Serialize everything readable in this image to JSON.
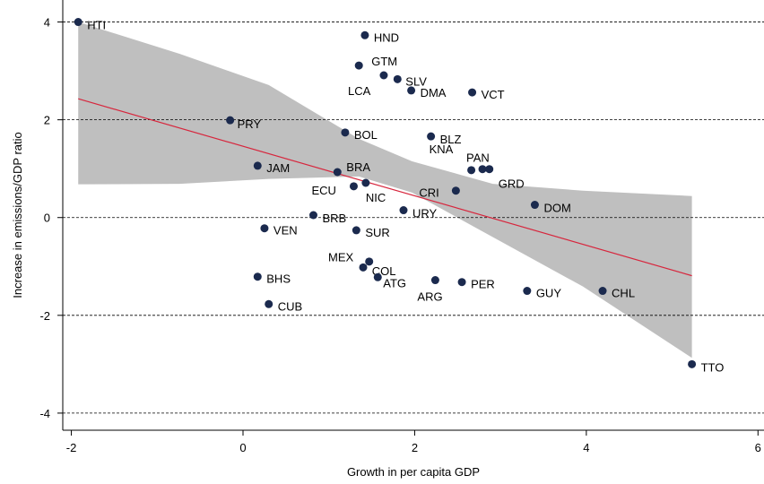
{
  "chart_data": {
    "type": "scatter",
    "xlabel": "Growth in per capita GDP",
    "ylabel": "Increase in emissions/GDP ratio",
    "point_labels": [
      "HTI",
      "HND",
      "GTM",
      "LCA",
      "SLV",
      "DMA",
      "VCT",
      "PRY",
      "BOL",
      "BLZ",
      "JAM",
      "BRA",
      "KNA",
      "PAN",
      "GRD",
      "ECU",
      "NIC",
      "CRI",
      "DOM",
      "BRB",
      "URY",
      "VEN",
      "SUR",
      "MEX",
      "COL",
      "ATG",
      "ARG",
      "PER",
      "BHS",
      "CUB",
      "GUY",
      "CHL",
      "TTO"
    ],
    "x": [
      -1.92,
      1.42,
      1.35,
      1.64,
      1.8,
      1.96,
      2.67,
      -0.15,
      1.19,
      2.19,
      0.17,
      1.1,
      2.66,
      2.79,
      2.87,
      1.29,
      1.43,
      2.48,
      3.4,
      0.82,
      1.87,
      0.25,
      1.32,
      1.4,
      1.47,
      1.57,
      2.24,
      2.55,
      0.17,
      0.3,
      3.31,
      4.19,
      5.23
    ],
    "values": [
      4.0,
      3.73,
      3.11,
      2.91,
      2.83,
      2.6,
      2.56,
      1.99,
      1.74,
      1.66,
      1.06,
      0.93,
      0.97,
      0.99,
      0.99,
      0.64,
      0.71,
      0.55,
      0.26,
      0.05,
      0.15,
      -0.22,
      -0.26,
      -1.02,
      -0.9,
      -1.22,
      -1.28,
      -1.32,
      -1.21,
      -1.77,
      -1.5,
      -1.5,
      -3.0
    ],
    "color": "#1b2a4e",
    "label_color": "#2c4a78",
    "fit_line": {
      "x": [
        -1.92,
        5.23
      ],
      "values": [
        2.43,
        -1.19
      ],
      "color": "#d7263d"
    },
    "confidence_band": {
      "x": [
        -1.92,
        -0.74,
        0.3,
        1.35,
        1.97,
        2.91,
        3.96,
        5.23
      ],
      "upper": [
        4.0,
        3.35,
        2.71,
        1.61,
        1.15,
        0.69,
        0.55,
        0.44
      ],
      "lower": [
        0.68,
        0.69,
        0.79,
        0.84,
        0.51,
        -0.4,
        -1.41,
        -2.87
      ],
      "color": "#bfbfbf"
    },
    "xlim": [
      -2.1,
      6.07
    ],
    "ylim": [
      -4.35,
      4.45
    ],
    "xticks": [
      -2,
      0,
      2,
      4,
      6
    ],
    "yticks": [
      -4,
      -2,
      0,
      2,
      4
    ],
    "grid": true
  }
}
